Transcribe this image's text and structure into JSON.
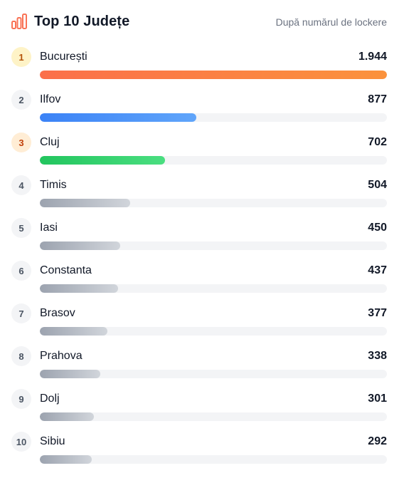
{
  "header": {
    "title": "Top 10 Județe",
    "subtitle": "După numărul de lockere",
    "icon": "bar-chart-icon",
    "icon_color": "#f97356"
  },
  "chart_data": {
    "type": "bar",
    "orientation": "horizontal",
    "categories": [
      "București",
      "Ilfov",
      "Cluj",
      "Timis",
      "Iasi",
      "Constanta",
      "Brasov",
      "Prahova",
      "Dolj",
      "Sibiu"
    ],
    "values": [
      1944,
      877,
      702,
      504,
      450,
      437,
      377,
      338,
      301,
      292
    ],
    "labels": [
      "1.944",
      "877",
      "702",
      "504",
      "450",
      "437",
      "377",
      "338",
      "301",
      "292"
    ],
    "ranks": [
      "1",
      "2",
      "3",
      "4",
      "5",
      "6",
      "7",
      "8",
      "9",
      "10"
    ],
    "xlim": [
      0,
      1944
    ]
  },
  "colors": {
    "gold_badge_bg": "#fef3c7",
    "gold_badge_text": "#b45309",
    "bronze_badge_bg": "#ffedd5",
    "bronze_badge_text": "#c2410c",
    "default_badge_bg": "#f3f4f6",
    "default_badge_text": "#4b5563",
    "bar_orange": [
      "#fb6f4a",
      "#fb923c"
    ],
    "bar_blue": [
      "#3b82f6",
      "#60a5fa"
    ],
    "bar_green": [
      "#22c55e",
      "#4ade80"
    ],
    "bar_gray": [
      "#9ca3af",
      "#d1d5db"
    ],
    "track": "#f3f4f6"
  }
}
